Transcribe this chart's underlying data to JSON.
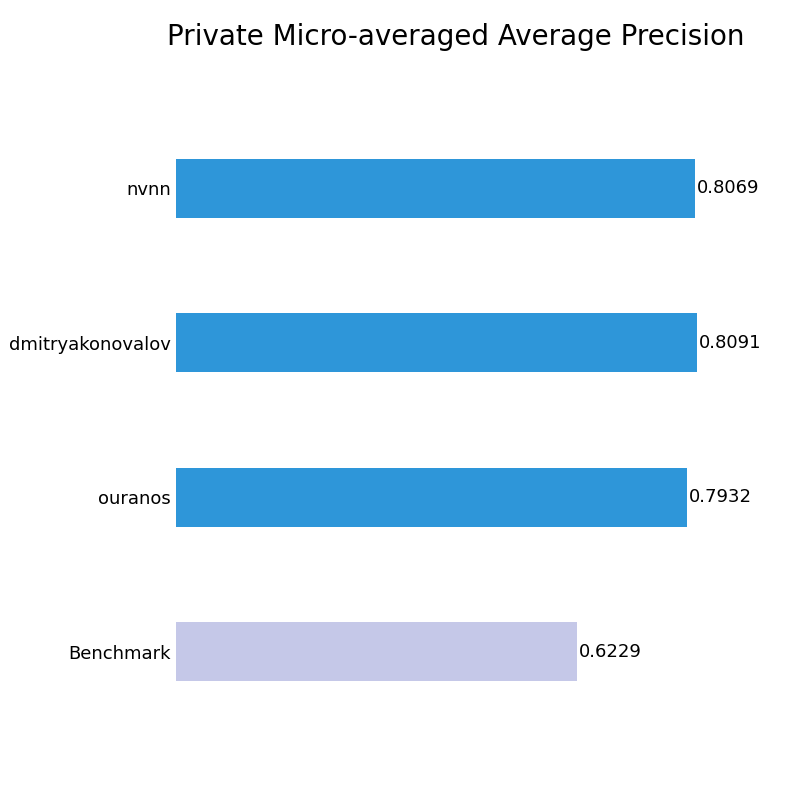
{
  "title": "Private Micro-averaged Average Precision",
  "categories": [
    "nvnn",
    "dmitryakonovalov",
    "ouranos",
    "Benchmark"
  ],
  "values": [
    0.8069,
    0.8091,
    0.7932,
    0.6229
  ],
  "bar_colors": [
    "#2e96d9",
    "#2e96d9",
    "#2e96d9",
    "#c5c8e8"
  ],
  "value_labels": [
    "0.8069",
    "0.8091",
    "0.7932",
    "0.6229"
  ],
  "xlim": [
    0,
    0.87
  ],
  "title_fontsize": 20,
  "label_fontsize": 13,
  "value_fontsize": 13,
  "background_color": "#ffffff",
  "bar_height": 0.38,
  "figsize": [
    8.0,
    8.0
  ],
  "dpi": 100
}
